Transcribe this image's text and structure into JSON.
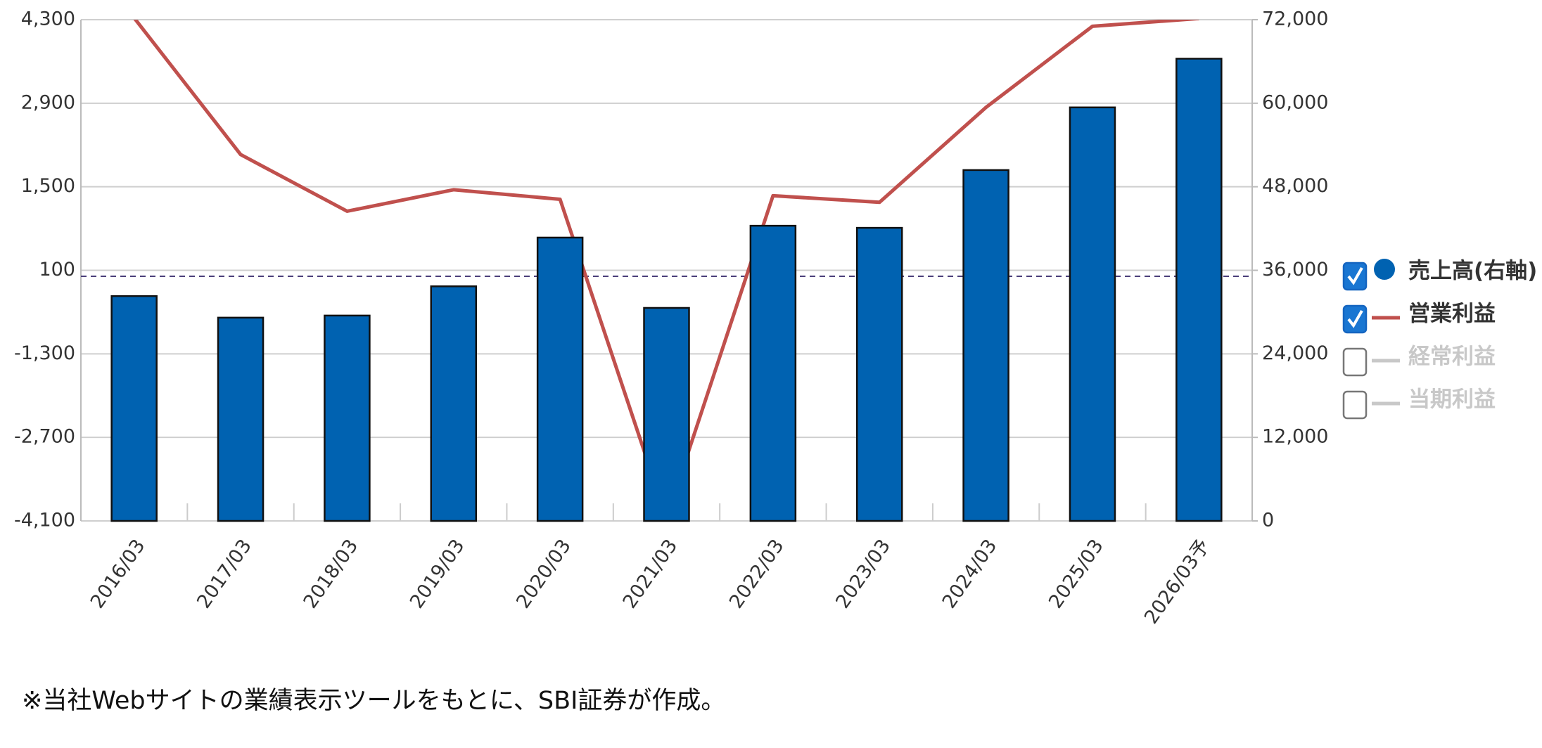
{
  "chart_data": {
    "type": "bar",
    "categories": [
      "2016/03",
      "2017/03",
      "2018/03",
      "2019/03",
      "2020/03",
      "2021/03",
      "2022/03",
      "2023/03",
      "2024/03",
      "2025/03",
      "2026/03予"
    ],
    "series": [
      {
        "name": "売上高(右軸)",
        "type": "bar",
        "axis": "y2",
        "color": "#0062b1",
        "checked": true,
        "values": [
          32300,
          29200,
          29500,
          33700,
          40700,
          30600,
          42400,
          42100,
          50400,
          59400,
          66400
        ]
      },
      {
        "name": "営業利益",
        "type": "line",
        "color": "#c0504d",
        "checked": true,
        "values": [
          4330,
          2040,
          1090,
          1450,
          1290,
          -4050,
          1350,
          1240,
          2830,
          4190,
          4320
        ]
      }
    ],
    "legend_extra": [
      {
        "name": "経常利益",
        "checked": false,
        "color": "#c8c8c8"
      },
      {
        "name": "当期利益",
        "checked": false,
        "color": "#c8c8c8"
      }
    ],
    "ylim": [
      -4100,
      4300
    ],
    "yticks": [
      {
        "value": 4300,
        "label": "4,300"
      },
      {
        "value": 2900,
        "label": "2,900"
      },
      {
        "value": 1500,
        "label": "1,500"
      },
      100,
      {
        "value": -1300,
        "label": "-1,300"
      },
      {
        "value": -2700,
        "label": "-2,700"
      },
      {
        "value": -4100,
        "label": "-4,100"
      }
    ],
    "y2lim": [
      0,
      72000
    ],
    "y2ticks": [
      0,
      {
        "value": 12000,
        "label": "12,000"
      },
      {
        "value": 24000,
        "label": "24,000"
      },
      {
        "value": 36000,
        "label": "36,000"
      },
      {
        "value": 48000,
        "label": "48,000"
      },
      {
        "value": 60000,
        "label": "60,000"
      },
      {
        "value": 72000,
        "label": "72,000"
      }
    ],
    "grid": true,
    "legend": "right",
    "footnote": "※当社Webサイトの業績表示ツールをもとに、SBI証券が作成。"
  }
}
